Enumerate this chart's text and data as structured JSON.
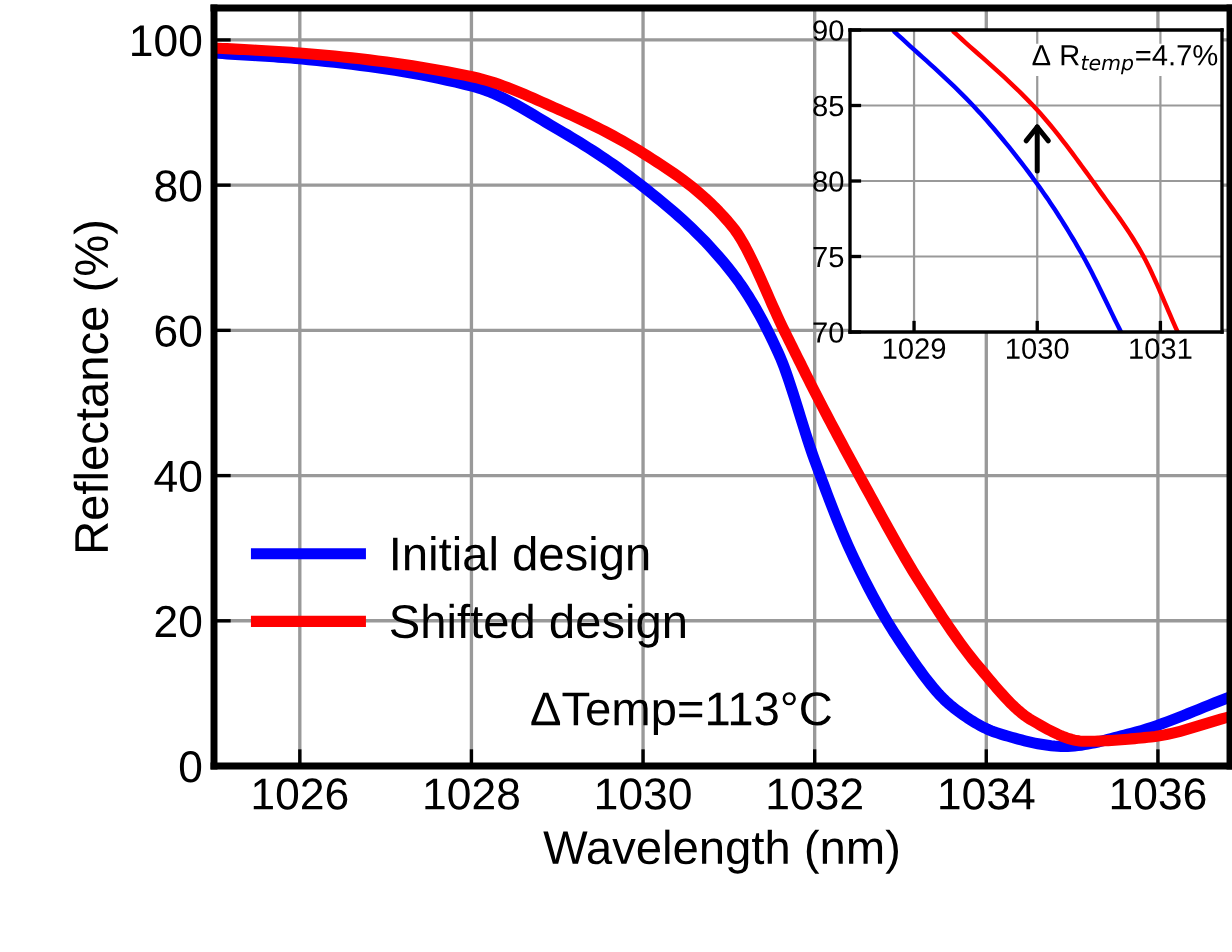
{
  "chart_data": [
    {
      "type": "line",
      "xlabel": "Wavelength (nm)",
      "ylabel": "Reflectance (%)",
      "xlim": [
        1025,
        1036.84
      ],
      "ylim": [
        0,
        104.4
      ],
      "xticks": [
        1026,
        1028,
        1030,
        1032,
        1034,
        1036
      ],
      "yticks": [
        0,
        20,
        40,
        60,
        80,
        100
      ],
      "grid": true,
      "legend": "bottom left",
      "annotations": [
        "ΔTemp=113°C"
      ],
      "series": [
        {
          "name": "Initial design",
          "color": "#0000ff",
          "x": [
            1025.0,
            1026,
            1028.02,
            1029.02,
            1030.0,
            1031.04,
            1031.58,
            1032.0,
            1032.43,
            1032.98,
            1033.6,
            1034.14,
            1034.91,
            1035.69,
            1036.84
          ],
          "values": [
            98.2,
            97.4,
            93.6,
            87.6,
            79.8,
            67.9,
            56.8,
            42.1,
            29.3,
            17.4,
            8.2,
            4.5,
            2.7,
            4.5,
            9.5
          ]
        },
        {
          "name": "Shifted design",
          "color": "#ff0000",
          "x": [
            1025.0,
            1026,
            1028.02,
            1029.02,
            1030.0,
            1031.04,
            1031.66,
            1032.05,
            1032.59,
            1033.21,
            1033.91,
            1034.53,
            1035.15,
            1035.92,
            1036.84
          ],
          "values": [
            98.9,
            98.2,
            94.9,
            90.4,
            84.4,
            74.3,
            59.6,
            50.4,
            38.5,
            25.6,
            13.7,
            6.3,
            3.4,
            4.0,
            6.8
          ]
        }
      ]
    },
    {
      "type": "line",
      "xlim": [
        1028.48,
        1031.5
      ],
      "ylim": [
        70,
        90
      ],
      "xticks": [
        1029,
        1030,
        1031
      ],
      "yticks": [
        70,
        75,
        80,
        85,
        90
      ],
      "grid": true,
      "annotations": [
        {
          "text": "Δ R$_{temp}$=4.7%",
          "x": 1030.0,
          "y": 84.7
        }
      ],
      "series": [
        {
          "color": "#0000ff",
          "x": [
            1028.84,
            1029.49,
            1030.0,
            1030.36,
            1030.68
          ],
          "values": [
            89.9,
            84.9,
            79.8,
            75.2,
            70.0
          ]
        },
        {
          "color": "#ff0000",
          "x": [
            1029.32,
            1030.0,
            1030.52,
            1030.85,
            1031.14
          ],
          "values": [
            89.9,
            84.7,
            79.2,
            75.2,
            70.0
          ]
        }
      ]
    }
  ]
}
